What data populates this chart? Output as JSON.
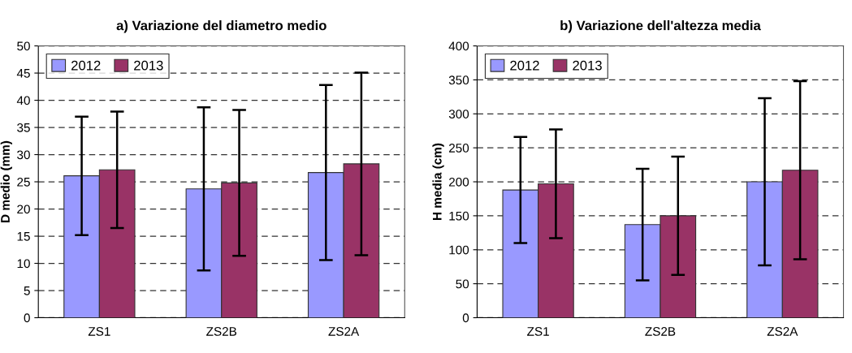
{
  "chart_data": [
    {
      "type": "bar",
      "title": "a) Variazione del diametro medio",
      "ylabel": "D medio (mm)",
      "categories": [
        "ZS1",
        "ZS2B",
        "ZS2A"
      ],
      "series": [
        {
          "name": "2012",
          "color": "#9999ff",
          "values": [
            26.1,
            23.7,
            26.7
          ],
          "errors": [
            10.9,
            15.0,
            16.1
          ]
        },
        {
          "name": "2013",
          "color": "#993366",
          "values": [
            27.2,
            24.8,
            28.3
          ],
          "errors": [
            10.7,
            13.4,
            16.8
          ]
        }
      ],
      "ylim": [
        0,
        50
      ],
      "yticks": [
        0,
        5,
        10,
        15,
        20,
        25,
        30,
        35,
        40,
        45,
        50
      ],
      "grid": "y",
      "legend": "top left"
    },
    {
      "type": "bar",
      "title": "b) Variazione dell'altezza media",
      "ylabel": "H media (cm)",
      "categories": [
        "ZS1",
        "ZS2B",
        "ZS2A"
      ],
      "series": [
        {
          "name": "2012",
          "color": "#9999ff",
          "values": [
            188,
            137,
            200
          ],
          "errors": [
            78,
            82,
            123
          ]
        },
        {
          "name": "2013",
          "color": "#993366",
          "values": [
            197,
            150,
            217
          ],
          "errors": [
            80,
            87,
            131
          ]
        }
      ],
      "ylim": [
        0,
        400
      ],
      "yticks": [
        0,
        50,
        100,
        150,
        200,
        250,
        300,
        350,
        400
      ],
      "grid": "y",
      "legend": "top left"
    }
  ]
}
